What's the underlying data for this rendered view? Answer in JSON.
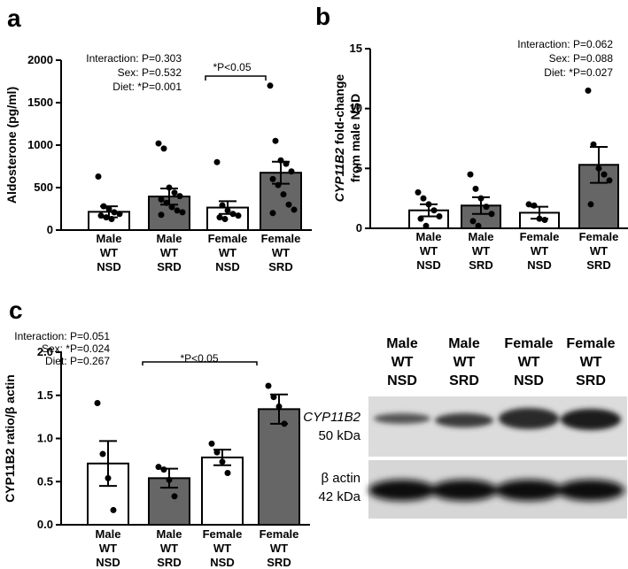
{
  "panels": {
    "a": {
      "letter": "a",
      "stats": [
        "Interaction: P=0.303",
        "Sex: P=0.532",
        "Diet: *P=0.001"
      ],
      "sig": "*P<0.05"
    },
    "b": {
      "letter": "b",
      "stats": [
        "Interaction: P=0.062",
        "Sex: P=0.088",
        "Diet: *P=0.027"
      ],
      "ylabel_gene": "CYP11B2",
      "ylabel_rest": " fold-change",
      "ylabel_line2": "from male NSD"
    },
    "c": {
      "letter": "c",
      "stats": [
        "Interaction: P=0.051",
        "Sex: *P=0.024",
        "Diet: P=0.267"
      ],
      "sig": "*P<0.05"
    }
  },
  "blot": {
    "lanes": [
      [
        "Male",
        "WT",
        "NSD"
      ],
      [
        "Male",
        "WT",
        "SRD"
      ],
      [
        "Female",
        "WT",
        "NSD"
      ],
      [
        "Female",
        "WT",
        "SRD"
      ]
    ],
    "band1_gene": "CYP11B2",
    "band1_kda": "50 kDa",
    "band2_name": "β actin",
    "band2_kda": "42 kDa"
  },
  "colors": {
    "nsd_fill": "#ffffff",
    "srd_fill": "#666666",
    "text": "#000000"
  },
  "chart_data": [
    {
      "id": "a",
      "type": "bar",
      "categories": [
        [
          "Male",
          "WT",
          "NSD"
        ],
        [
          "Male",
          "WT",
          "SRD"
        ],
        [
          "Female",
          "WT",
          "NSD"
        ],
        [
          "Female",
          "WT",
          "SRD"
        ]
      ],
      "values": [
        215,
        395,
        265,
        675
      ],
      "errors": [
        65,
        95,
        75,
        130
      ],
      "points": [
        [
          630,
          280,
          250,
          210,
          190,
          170,
          150,
          130
        ],
        [
          1020,
          960,
          500,
          440,
          400,
          360,
          320,
          270,
          230,
          210,
          180
        ],
        [
          800,
          290,
          230,
          190,
          170,
          150,
          130
        ],
        [
          1700,
          1050,
          820,
          780,
          690,
          600,
          530,
          420,
          300,
          240,
          200
        ]
      ],
      "ylabel": "Aldosterone (pg/ml)",
      "ylim": [
        0,
        2000
      ],
      "yticks": [
        0,
        500,
        1000,
        1500,
        2000
      ]
    },
    {
      "id": "b",
      "type": "bar",
      "categories": [
        [
          "Male",
          "WT",
          "NSD"
        ],
        [
          "Male",
          "WT",
          "SRD"
        ],
        [
          "Female",
          "WT",
          "NSD"
        ],
        [
          "Female",
          "WT",
          "SRD"
        ]
      ],
      "values": [
        1.5,
        1.9,
        1.3,
        5.3
      ],
      "errors": [
        0.5,
        0.7,
        0.5,
        1.5
      ],
      "points": [
        [
          3.0,
          2.5,
          2.0,
          1.5,
          1.0,
          0.8,
          0.2
        ],
        [
          4.5,
          3.3,
          2.5,
          1.8,
          1.2,
          0.6,
          0.2
        ],
        [
          2.0,
          1.9,
          0.8,
          0.7
        ],
        [
          11.5,
          7.0,
          5.0,
          4.5,
          4.0,
          2.0
        ]
      ],
      "ylabel": "CYP11B2 fold-change from male NSD",
      "ylim": [
        0,
        15
      ],
      "yticks": [
        0,
        5,
        10,
        15
      ]
    },
    {
      "id": "c",
      "type": "bar",
      "categories": [
        [
          "Male",
          "WT",
          "NSD"
        ],
        [
          "Male",
          "WT",
          "SRD"
        ],
        [
          "Female",
          "WT",
          "NSD"
        ],
        [
          "Female",
          "WT",
          "SRD"
        ]
      ],
      "values": [
        0.71,
        0.54,
        0.78,
        1.34
      ],
      "errors": [
        0.26,
        0.11,
        0.09,
        0.17
      ],
      "points": [
        [
          1.41,
          0.82,
          0.54,
          0.17
        ],
        [
          0.67,
          0.64,
          0.52,
          0.33
        ],
        [
          0.94,
          0.84,
          0.73,
          0.6
        ],
        [
          1.61,
          1.48,
          1.37,
          1.17
        ]
      ],
      "ylabel": "CYP11B2 ratio/β actin",
      "ylim": [
        0,
        2.0
      ],
      "yticks": [
        "0.0",
        "0.5",
        "1.0",
        "1.5",
        "2.0"
      ]
    }
  ]
}
